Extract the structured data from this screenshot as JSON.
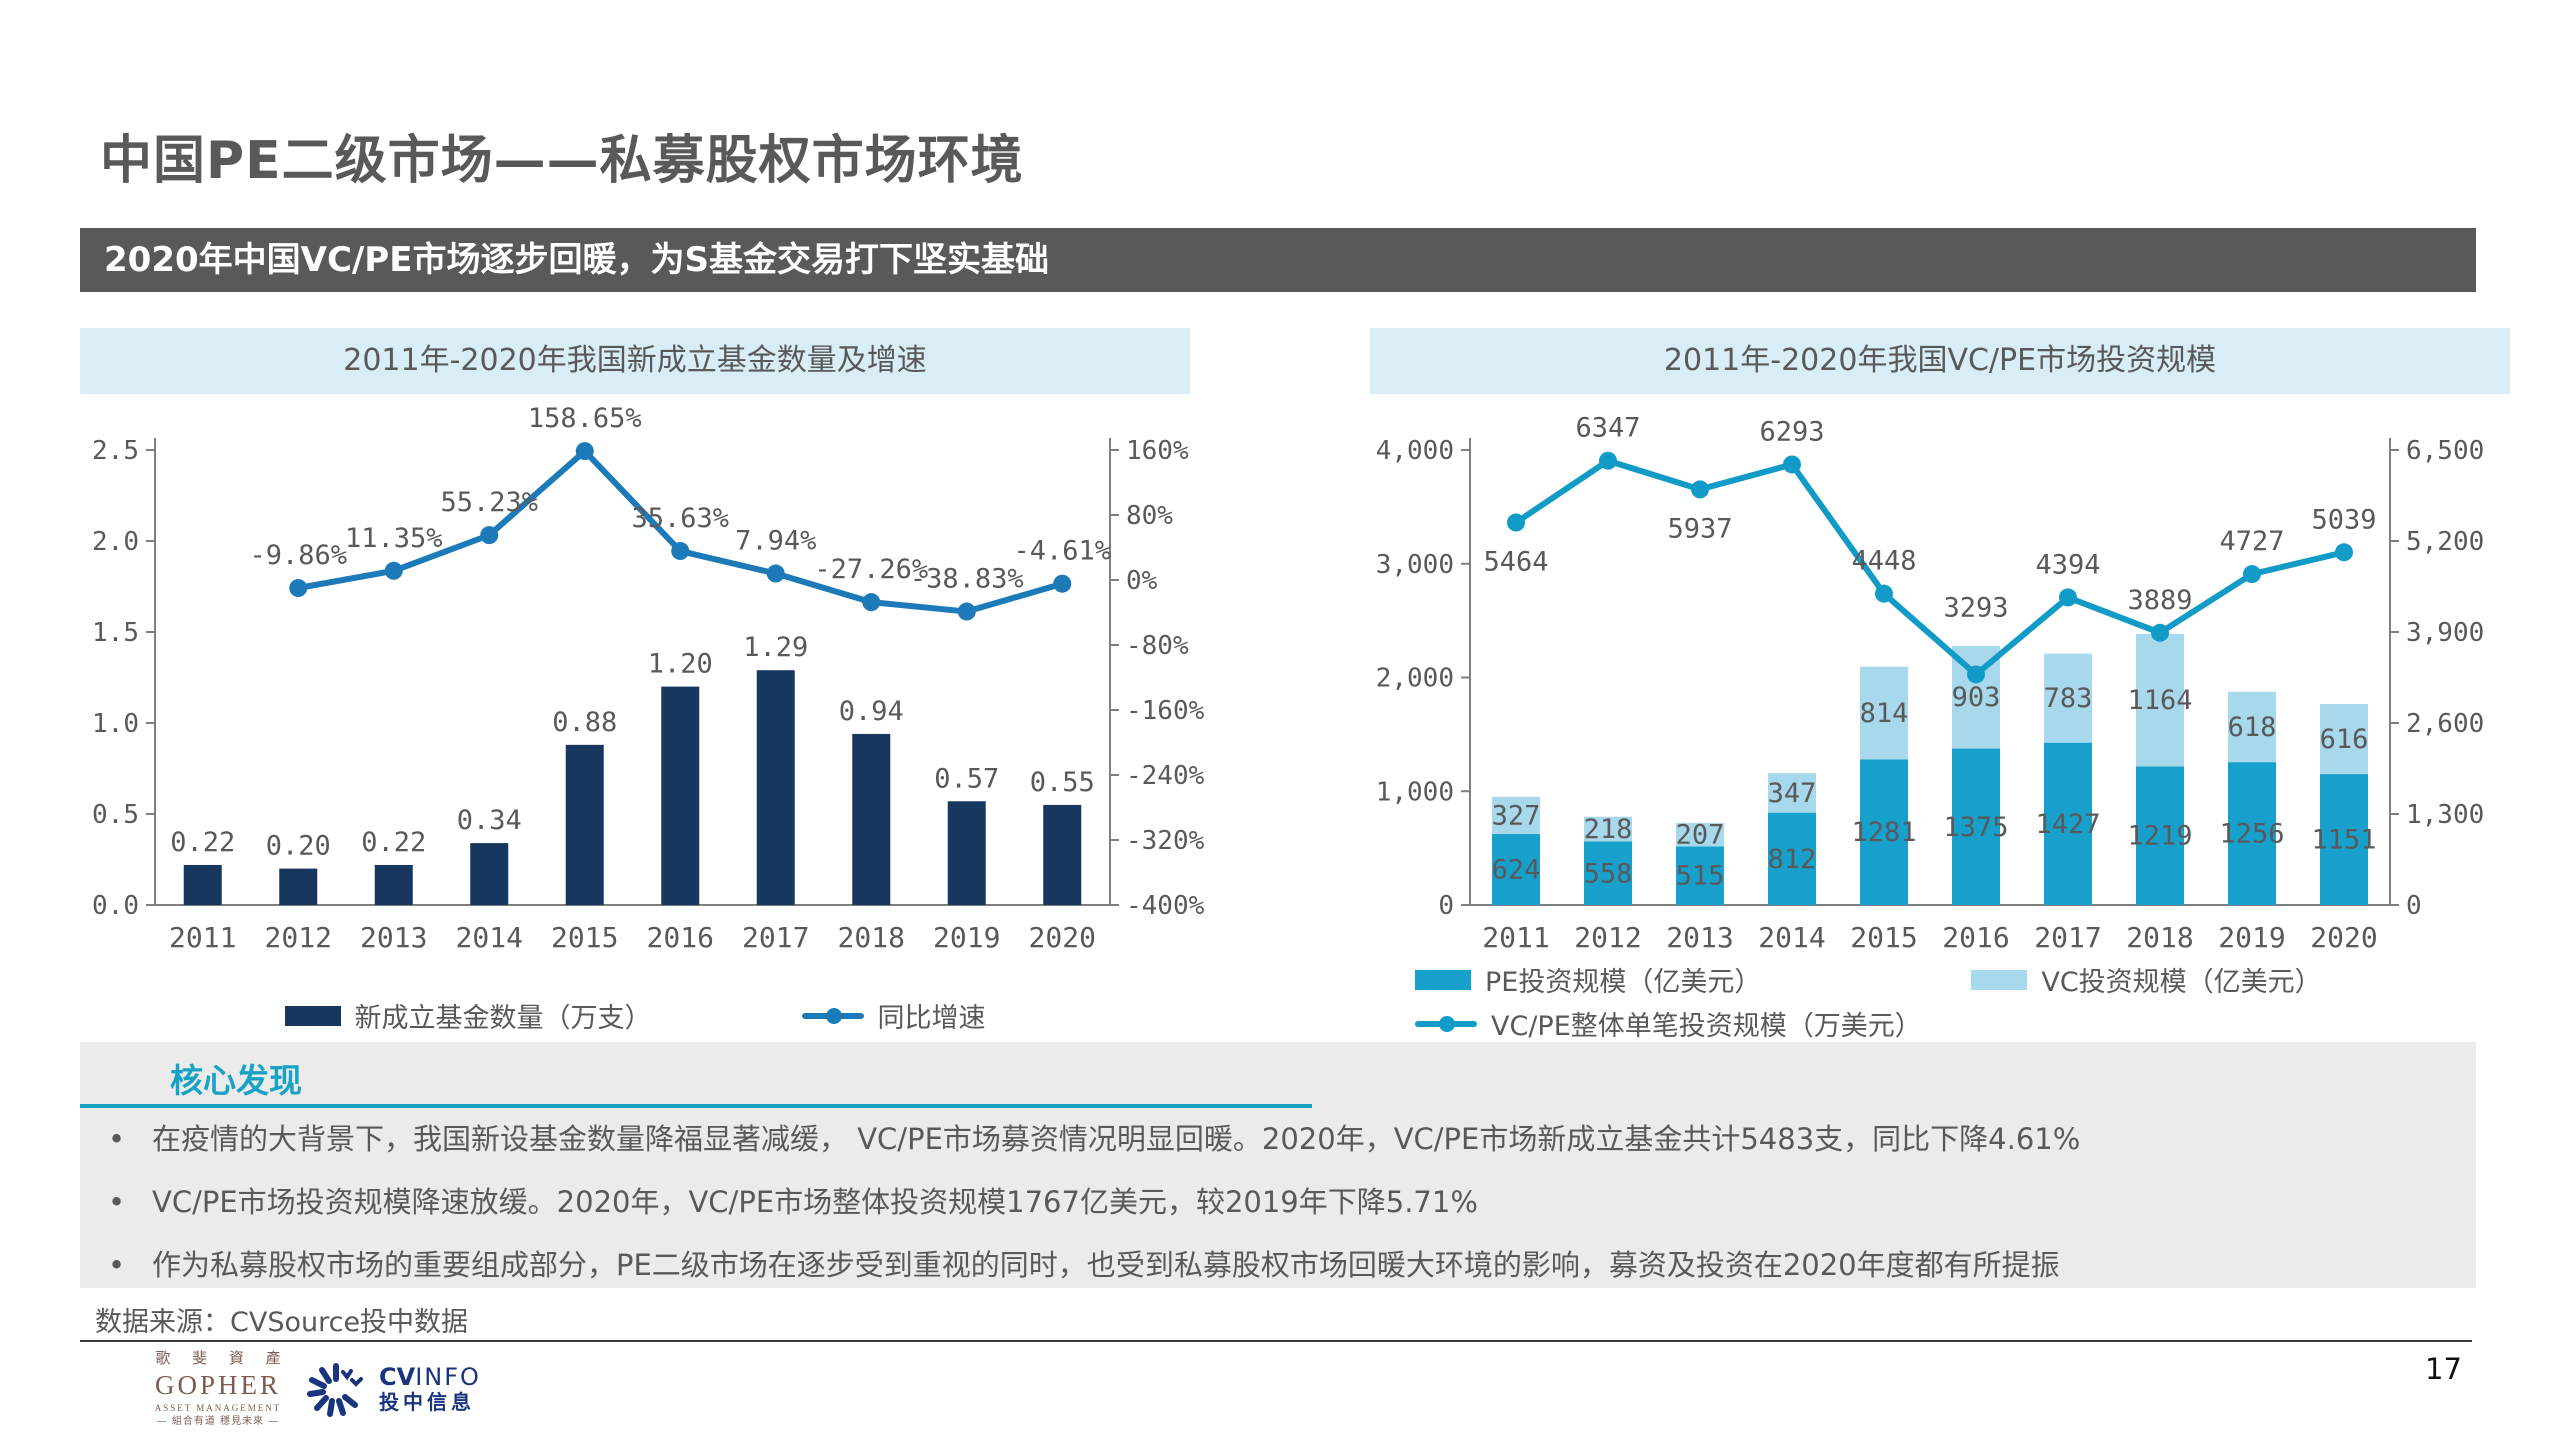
{
  "page": {
    "title": "中国PE二级市场——私募股权市场环境",
    "banner": "2020年中国VC/PE市场逐步回暖，为S基金交易打下坚实基础",
    "page_number": "17",
    "source": "数据来源：CVSource投中数据"
  },
  "chart_data": [
    {
      "type": "bar+line",
      "title": "2011年-2020年我国新成立基金数量及增速",
      "categories": [
        "2011",
        "2012",
        "2013",
        "2014",
        "2015",
        "2016",
        "2017",
        "2018",
        "2019",
        "2020"
      ],
      "left_axis": {
        "min": 0,
        "max": 2.5,
        "ticks": [
          0,
          0.5,
          1,
          1.5,
          2,
          2.5
        ],
        "tick_labels": [
          "0.0",
          "0.5",
          "1.0",
          "1.5",
          "2.0",
          "2.5"
        ]
      },
      "right_axis": {
        "min": -400,
        "max": 160,
        "ticks": [
          160,
          80,
          0,
          -80,
          -160,
          -240,
          -320,
          -400
        ],
        "tick_labels": [
          "160%",
          "80%",
          "0%",
          "-80%",
          "-160%",
          "-240%",
          "-320%",
          "-400%"
        ]
      },
      "grid": false,
      "legend_position": "bottom-center",
      "series": [
        {
          "name": "新成立基金数量（万支）",
          "type": "bar",
          "axis": "left",
          "color": "#17375E",
          "label_placement": "above",
          "values": [
            0.22,
            0.2,
            0.22,
            0.34,
            0.88,
            1.2,
            1.29,
            0.94,
            0.57,
            0.55
          ],
          "labels": [
            "0.22",
            "0.20",
            "0.22",
            "0.34",
            "0.88",
            "1.20",
            "1.29",
            "0.94",
            "0.57",
            "0.55"
          ]
        },
        {
          "name": "同比增速",
          "type": "line",
          "axis": "right",
          "color": "#1C7AB8",
          "x_start_index": 1,
          "values": [
            -9.86,
            11.35,
            55.23,
            158.65,
            35.63,
            7.94,
            -27.26,
            -38.83,
            -4.61
          ],
          "labels": [
            "-9.86%",
            "11.35%",
            "55.23%",
            "158.65%",
            "35.63%",
            "7.94%",
            "-27.26%",
            "-38.83%",
            "-4.61%"
          ],
          "label_positions": [
            "above",
            "above",
            "above",
            "above",
            "above",
            "above",
            "above",
            "above",
            "above"
          ]
        }
      ]
    },
    {
      "type": "stacked-bar+line",
      "title": "2011年-2020年我国VC/PE市场投资规模",
      "categories": [
        "2011",
        "2012",
        "2013",
        "2014",
        "2015",
        "2016",
        "2017",
        "2018",
        "2019",
        "2020"
      ],
      "left_axis": {
        "min": 0,
        "max": 4000,
        "ticks": [
          0,
          1000,
          2000,
          3000,
          4000
        ],
        "tick_labels": [
          "0",
          "1,000",
          "2,000",
          "3,000",
          "4,000"
        ]
      },
      "right_axis": {
        "min": 0,
        "max": 6500,
        "ticks": [
          0,
          1300,
          2600,
          3900,
          5200,
          6500
        ],
        "tick_labels": [
          "0",
          "1,300",
          "2,600",
          "3,900",
          "5,200",
          "6,500"
        ]
      },
      "grid": false,
      "legend_position": "bottom-left",
      "series": [
        {
          "name": "PE投资规模（亿美元）",
          "type": "bar",
          "axis": "left",
          "color": "#18A0CC",
          "label_placement": "inside",
          "values": [
            624,
            558,
            515,
            812,
            1281,
            1375,
            1427,
            1219,
            1256,
            1151
          ],
          "labels": [
            "624",
            "558",
            "515",
            "812",
            "1281",
            "1375",
            "1427",
            "1219",
            "1256",
            "1151"
          ]
        },
        {
          "name": "VC投资规模（亿美元）",
          "type": "bar",
          "axis": "left",
          "color": "#A8D8EC",
          "label_placement": "inside",
          "values": [
            327,
            218,
            207,
            347,
            814,
            903,
            783,
            1164,
            618,
            616
          ],
          "labels": [
            "327",
            "218",
            "207",
            "347",
            "814",
            "903",
            "783",
            "1164",
            "618",
            "616"
          ]
        },
        {
          "name": "VC/PE整体单笔投资规模（万美元）",
          "type": "line",
          "axis": "right",
          "color": "#129BC7",
          "values": [
            5464,
            6347,
            5937,
            6293,
            4448,
            3293,
            4394,
            3889,
            4727,
            5039
          ],
          "labels": [
            "5464",
            "6347",
            "5937",
            "6293",
            "4448",
            "3293",
            "4394",
            "3889",
            "4727",
            "5039"
          ],
          "label_positions": [
            "below",
            "above",
            "below",
            "above",
            "above",
            "above-far",
            "above",
            "above",
            "above",
            "above"
          ]
        }
      ]
    }
  ],
  "findings": {
    "title": "核心发现",
    "bullets": [
      "在疫情的大背景下，我国新设基金数量降福显著减缓， VC/PE市场募资情况明显回暖。2020年，VC/PE市场新成立基金共计5483支，同比下降4.61%",
      "VC/PE市场投资规模降速放缓。2020年，VC/PE市场整体投资规模1767亿美元，较2019年下降5.71%",
      "作为私募股权市场的重要组成部分，PE二级市场在逐步受到重视的同时，也受到私募股权市场回暖大环境的影响，募资及投资在2020年度都有所提振"
    ]
  },
  "footer": {
    "gopher": {
      "cn": "歌 斐 資 產",
      "en": "GOPHER",
      "sub": "ASSET MANAGEMENT",
      "slogan": "— 組合有道 穩見未來 —",
      "color": "#7B5C51"
    },
    "cvinfo": {
      "brand_bold": "CV",
      "brand_light": "INFO",
      "sub": "投中信息",
      "color": "#1A357E"
    }
  },
  "colors": {
    "accent_teal": "#18A3C5",
    "banner_gray": "#595959",
    "header_blue": "#D8EDF6",
    "findings_bg": "#EBEBEB",
    "axis_gray": "#7f7f7f",
    "text_gray": "#595959"
  }
}
